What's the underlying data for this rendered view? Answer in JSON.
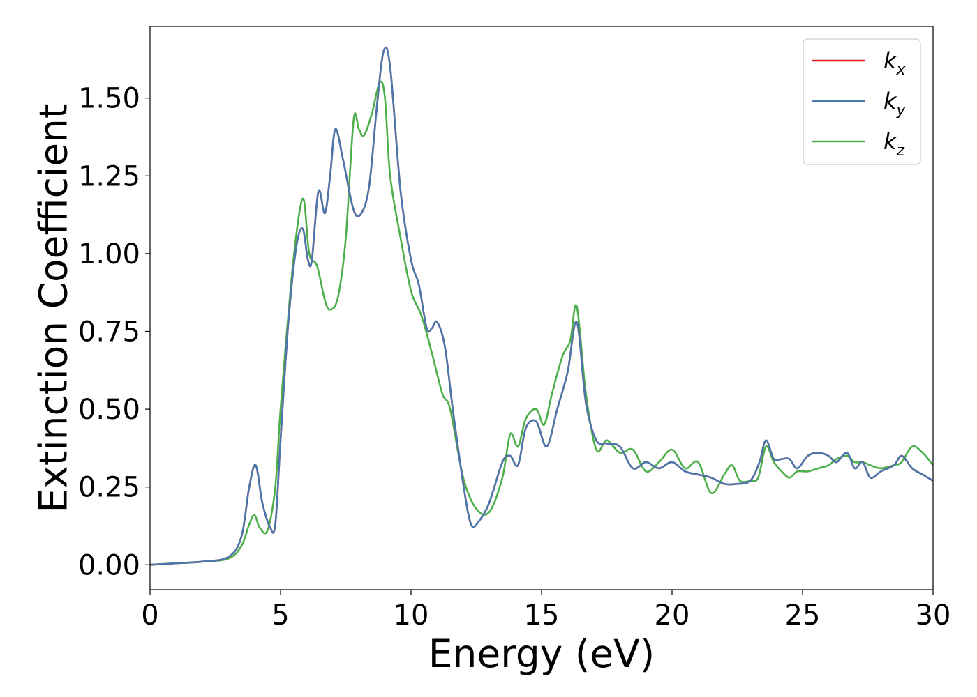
{
  "chart_data": {
    "type": "line",
    "title": "",
    "xlabel": "Energy (eV)",
    "ylabel": "Extinction Coefficient",
    "xlim": [
      0,
      30
    ],
    "ylim": [
      -0.08,
      1.73
    ],
    "xticks": [
      0,
      5,
      10,
      15,
      20,
      25,
      30
    ],
    "xtick_labels": [
      "0",
      "5",
      "10",
      "15",
      "20",
      "25",
      "30"
    ],
    "yticks": [
      0.0,
      0.25,
      0.5,
      0.75,
      1.0,
      1.25,
      1.5
    ],
    "ytick_labels": [
      "0.00",
      "0.25",
      "0.50",
      "0.75",
      "1.00",
      "1.25",
      "1.50"
    ],
    "grid": false,
    "legend_position": "top-right",
    "series": [
      {
        "name": "k_x",
        "label_main": "k",
        "label_sub": "x",
        "color": "#e41a1c",
        "x": [
          0,
          1,
          2,
          3,
          3.5,
          3.8,
          4.05,
          4.3,
          4.6,
          4.8,
          5.0,
          5.3,
          5.6,
          5.85,
          6.05,
          6.2,
          6.45,
          6.7,
          6.9,
          7.1,
          7.4,
          7.8,
          8.1,
          8.4,
          8.7,
          8.95,
          9.2,
          9.6,
          10.0,
          10.3,
          10.6,
          10.8,
          11.0,
          11.3,
          11.6,
          12.0,
          12.3,
          12.6,
          13.0,
          13.5,
          13.8,
          14.1,
          14.4,
          14.8,
          15.2,
          15.6,
          16.0,
          16.35,
          16.7,
          17.1,
          17.5,
          18.0,
          18.5,
          19.0,
          19.5,
          20.0,
          20.5,
          21.0,
          21.5,
          22.0,
          22.5,
          23.0,
          23.35,
          23.6,
          23.9,
          24.2,
          24.5,
          24.8,
          25.2,
          25.6,
          26.0,
          26.3,
          26.7,
          27.0,
          27.3,
          27.6,
          28.0,
          28.5,
          28.8,
          29.2,
          29.6,
          30.0
        ],
        "values": [
          0.0,
          0.005,
          0.01,
          0.025,
          0.09,
          0.25,
          0.32,
          0.2,
          0.12,
          0.13,
          0.4,
          0.78,
          1.02,
          1.08,
          0.98,
          0.98,
          1.2,
          1.13,
          1.25,
          1.4,
          1.3,
          1.14,
          1.13,
          1.22,
          1.48,
          1.65,
          1.6,
          1.2,
          0.98,
          0.9,
          0.76,
          0.76,
          0.78,
          0.7,
          0.5,
          0.26,
          0.13,
          0.14,
          0.2,
          0.33,
          0.35,
          0.32,
          0.44,
          0.46,
          0.38,
          0.5,
          0.62,
          0.78,
          0.52,
          0.4,
          0.39,
          0.38,
          0.31,
          0.33,
          0.31,
          0.33,
          0.3,
          0.29,
          0.28,
          0.26,
          0.26,
          0.27,
          0.33,
          0.4,
          0.34,
          0.34,
          0.34,
          0.31,
          0.35,
          0.36,
          0.35,
          0.33,
          0.36,
          0.31,
          0.33,
          0.28,
          0.3,
          0.32,
          0.35,
          0.31,
          0.29,
          0.27
        ]
      },
      {
        "name": "k_y",
        "label_main": "k",
        "label_sub": "y",
        "color": "#4a78ad",
        "x": [
          0,
          1,
          2,
          3,
          3.5,
          3.8,
          4.05,
          4.3,
          4.6,
          4.8,
          5.0,
          5.3,
          5.6,
          5.85,
          6.05,
          6.2,
          6.45,
          6.7,
          6.9,
          7.1,
          7.4,
          7.8,
          8.1,
          8.4,
          8.7,
          8.95,
          9.2,
          9.6,
          10.0,
          10.3,
          10.6,
          10.8,
          11.0,
          11.3,
          11.6,
          12.0,
          12.3,
          12.6,
          13.0,
          13.5,
          13.8,
          14.1,
          14.4,
          14.8,
          15.2,
          15.6,
          16.0,
          16.35,
          16.7,
          17.1,
          17.5,
          18.0,
          18.5,
          19.0,
          19.5,
          20.0,
          20.5,
          21.0,
          21.5,
          22.0,
          22.5,
          23.0,
          23.35,
          23.6,
          23.9,
          24.2,
          24.5,
          24.8,
          25.2,
          25.6,
          26.0,
          26.3,
          26.7,
          27.0,
          27.3,
          27.6,
          28.0,
          28.5,
          28.8,
          29.2,
          29.6,
          30.0
        ],
        "values": [
          0.0,
          0.005,
          0.01,
          0.025,
          0.09,
          0.25,
          0.32,
          0.2,
          0.12,
          0.13,
          0.4,
          0.78,
          1.02,
          1.08,
          0.98,
          0.98,
          1.2,
          1.13,
          1.25,
          1.4,
          1.3,
          1.14,
          1.13,
          1.22,
          1.48,
          1.65,
          1.6,
          1.2,
          0.98,
          0.9,
          0.76,
          0.76,
          0.78,
          0.7,
          0.5,
          0.26,
          0.13,
          0.14,
          0.2,
          0.33,
          0.35,
          0.32,
          0.44,
          0.46,
          0.38,
          0.5,
          0.62,
          0.78,
          0.52,
          0.4,
          0.39,
          0.38,
          0.31,
          0.33,
          0.31,
          0.33,
          0.3,
          0.29,
          0.28,
          0.26,
          0.26,
          0.27,
          0.33,
          0.4,
          0.34,
          0.34,
          0.34,
          0.31,
          0.35,
          0.36,
          0.35,
          0.33,
          0.36,
          0.31,
          0.33,
          0.28,
          0.3,
          0.32,
          0.35,
          0.31,
          0.29,
          0.27
        ]
      },
      {
        "name": "k_z",
        "label_main": "k",
        "label_sub": "z",
        "color": "#4daf4a",
        "x": [
          0,
          1,
          2,
          3,
          3.5,
          3.8,
          4.0,
          4.2,
          4.5,
          4.8,
          5.0,
          5.4,
          5.7,
          5.9,
          6.1,
          6.4,
          6.7,
          6.9,
          7.2,
          7.5,
          7.8,
          8.0,
          8.2,
          8.5,
          8.8,
          9.0,
          9.2,
          9.6,
          10.0,
          10.4,
          10.8,
          11.2,
          11.5,
          12.0,
          12.5,
          13.0,
          13.5,
          13.8,
          14.1,
          14.4,
          14.8,
          15.1,
          15.4,
          15.8,
          16.1,
          16.35,
          16.7,
          17.1,
          17.5,
          18.0,
          18.5,
          19.0,
          19.5,
          20.0,
          20.5,
          21.0,
          21.5,
          22.0,
          22.3,
          22.6,
          23.0,
          23.3,
          23.6,
          23.9,
          24.2,
          24.5,
          24.8,
          25.2,
          25.6,
          26.0,
          26.3,
          26.7,
          27.0,
          27.3,
          27.6,
          28.0,
          28.5,
          28.8,
          29.2,
          29.6,
          30.0
        ],
        "values": [
          0.0,
          0.005,
          0.01,
          0.02,
          0.06,
          0.13,
          0.16,
          0.12,
          0.11,
          0.25,
          0.5,
          0.9,
          1.12,
          1.17,
          1.0,
          0.96,
          0.85,
          0.82,
          0.86,
          1.05,
          1.43,
          1.4,
          1.38,
          1.45,
          1.55,
          1.5,
          1.25,
          1.05,
          0.88,
          0.8,
          0.68,
          0.55,
          0.5,
          0.28,
          0.18,
          0.17,
          0.28,
          0.42,
          0.38,
          0.47,
          0.5,
          0.45,
          0.55,
          0.67,
          0.72,
          0.83,
          0.55,
          0.37,
          0.4,
          0.36,
          0.37,
          0.3,
          0.33,
          0.37,
          0.31,
          0.33,
          0.23,
          0.29,
          0.32,
          0.27,
          0.27,
          0.28,
          0.38,
          0.33,
          0.3,
          0.28,
          0.3,
          0.3,
          0.31,
          0.32,
          0.34,
          0.35,
          0.33,
          0.33,
          0.32,
          0.31,
          0.32,
          0.33,
          0.38,
          0.36,
          0.32
        ]
      }
    ]
  }
}
